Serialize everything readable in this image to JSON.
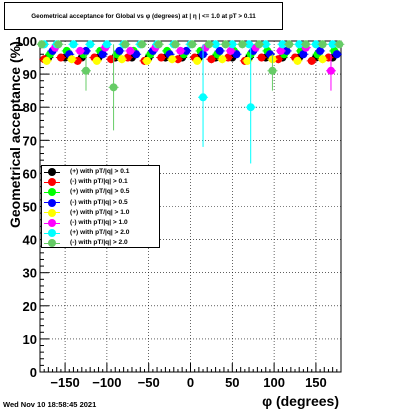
{
  "title": "Geometrical acceptance for Global vs φ (degrees) at | η | <= 1.0 at pT > 0.11",
  "timestamp": "Wed Nov 10 18:58:45 2021",
  "chart_data": {
    "type": "scatter",
    "title": "Geometrical acceptance for Global vs φ (degrees) at | η | <= 1.0 at pT > 0.11",
    "xlabel": "φ (degrees)",
    "ylabel": "Geometrical acceptance (%)",
    "xlim": [
      -180,
      180
    ],
    "ylim": [
      0,
      100
    ],
    "x_ticks": [
      -150,
      -100,
      -50,
      0,
      50,
      100,
      150
    ],
    "x_tick_labels": [
      "−150",
      "−100",
      "−50",
      "0",
      "50",
      "100",
      "150"
    ],
    "y_ticks": [
      0,
      10,
      20,
      30,
      40,
      50,
      60,
      70,
      80,
      90,
      100
    ],
    "y_tick_labels": [
      "0",
      "10",
      "20",
      "30",
      "40",
      "50",
      "60",
      "70",
      "80",
      "90",
      "100"
    ],
    "grid": true,
    "legend_position": "left",
    "series": [
      {
        "name": "(+) with pT/|q| > 0.1",
        "color": "#000000",
        "marker": "circle",
        "x": [
          -170,
          -150,
          -130,
          -110,
          -90,
          -70,
          -50,
          -30,
          -10,
          10,
          30,
          50,
          70,
          90,
          110,
          130,
          150,
          170
        ],
        "y": [
          95,
          95,
          95,
          95,
          95,
          95,
          95,
          95,
          95,
          95,
          95,
          95,
          95,
          95,
          95,
          95,
          95,
          95
        ]
      },
      {
        "name": "(-) with pT/|q| > 0.1",
        "color": "#ff0000",
        "marker": "circle",
        "x": [
          -175,
          -155,
          -135,
          -115,
          -95,
          -75,
          -55,
          -35,
          -15,
          5,
          25,
          45,
          65,
          85,
          105,
          125,
          145,
          165
        ],
        "y": [
          94.5,
          95,
          94,
          95,
          94.5,
          95,
          94,
          95,
          94.5,
          95,
          94.5,
          95,
          94,
          95,
          94.5,
          95,
          94,
          95
        ]
      },
      {
        "name": "(+) with pT/|q| > 0.5",
        "color": "#00ff00",
        "marker": "circle",
        "x": [
          -168,
          -148,
          -128,
          -108,
          -88,
          -68,
          -48,
          -28,
          -8,
          12,
          32,
          52,
          72,
          92,
          112,
          132,
          152,
          172
        ],
        "y": [
          96,
          97,
          96,
          97,
          96,
          97,
          96,
          97,
          96,
          97,
          96,
          97,
          96,
          97,
          96,
          97,
          96,
          97
        ]
      },
      {
        "name": "(-) with pT/|q| > 0.5",
        "color": "#0000ff",
        "marker": "circle",
        "x": [
          -165,
          -145,
          -125,
          -105,
          -85,
          -65,
          -45,
          -25,
          -5,
          15,
          35,
          55,
          75,
          95,
          115,
          135,
          155,
          175
        ],
        "y": [
          97,
          96,
          97,
          96,
          97,
          96,
          97,
          96,
          97,
          96,
          97,
          96,
          97,
          96,
          97,
          96,
          97,
          96
        ]
      },
      {
        "name": "(+) with pT/|q| > 1.0",
        "color": "#ffff00",
        "marker": "circle",
        "x": [
          -172,
          -142,
          -112,
          -82,
          -52,
          -22,
          8,
          38,
          68,
          98,
          128,
          158
        ],
        "y": [
          94,
          94.5,
          94,
          94.5,
          94,
          94.5,
          94,
          94.5,
          94,
          94.5,
          94,
          94.5
        ]
      },
      {
        "name": "(-) with pT/|q| > 1.0",
        "color": "#ff00ff",
        "marker": "circle",
        "x": [
          -162,
          -132,
          -102,
          -72,
          -42,
          -12,
          18,
          48,
          78,
          108,
          138,
          168
        ],
        "y": [
          98,
          97,
          98,
          97,
          98,
          97,
          98,
          97,
          98,
          97,
          98,
          91
        ]
      },
      {
        "name": "(+) with pT/|q| > 2.0",
        "color": "#00ffff",
        "marker": "circle",
        "x": [
          -175,
          -160,
          -140,
          -120,
          -100,
          -80,
          -60,
          -40,
          -20,
          0,
          15,
          30,
          50,
          70,
          72,
          90,
          110,
          130,
          150,
          170
        ],
        "y": [
          99,
          99,
          99,
          99,
          99,
          99,
          99,
          99,
          99,
          99,
          83,
          99,
          99,
          99,
          80,
          99,
          99,
          99,
          99,
          99
        ]
      },
      {
        "name": "(-) with pT/|q| > 2.0",
        "color": "#66cc66",
        "marker": "circle",
        "x": [
          -178,
          -158,
          -125,
          -92,
          -78,
          -58,
          -38,
          -18,
          2,
          22,
          42,
          62,
          82,
          98,
          118,
          138,
          158,
          178
        ],
        "y": [
          99,
          99,
          91,
          86,
          99,
          99,
          99,
          99,
          99,
          99,
          99,
          99,
          99,
          91,
          99,
          99,
          99,
          99
        ]
      }
    ]
  }
}
